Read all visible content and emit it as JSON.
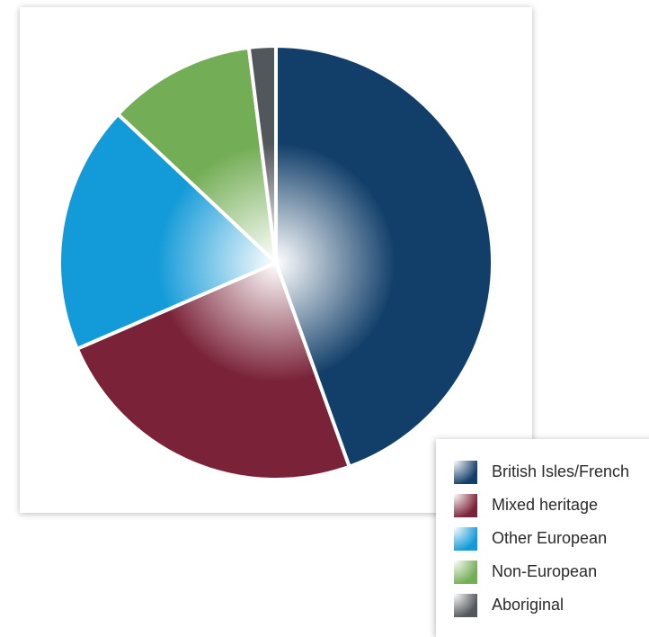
{
  "chart_data": {
    "type": "pie",
    "title": "",
    "categories": [
      "British Isles/French",
      "Mixed heritage",
      "Other European",
      "Non-European",
      "Aboriginal"
    ],
    "values": [
      44.5,
      24.0,
      18.5,
      11.0,
      2.0
    ],
    "unit": "%",
    "start_angle_deg": 0,
    "direction": "clockwise",
    "legend_position": "bottom-right",
    "colors": {
      "British Isles/French": "#123f6a",
      "Mixed heritage": "#7a2238",
      "Other European": "#139ad8",
      "Non-European": "#73ad55",
      "Aboriginal": "#52575c"
    }
  },
  "legend": {
    "items": [
      {
        "label": "British Isles/French",
        "color": "#123f6a"
      },
      {
        "label": "Mixed heritage",
        "color": "#7a2238"
      },
      {
        "label": "Other European",
        "color": "#139ad8"
      },
      {
        "label": "Non-European",
        "color": "#73ad55"
      },
      {
        "label": "Aboriginal",
        "color": "#52575c"
      }
    ]
  }
}
